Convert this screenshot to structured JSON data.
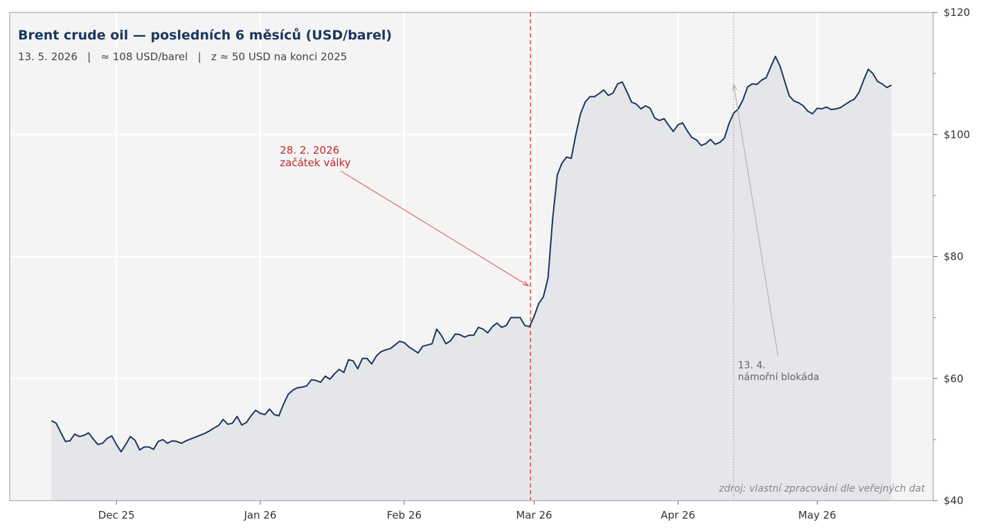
{
  "chart_data": {
    "type": "line",
    "title": "Brent crude oil — posledních 6 měsíců (USD/barel)",
    "subtitle": "13. 5. 2026   |   ≈ 108 USD/barel   |   z ≈ 50 USD na konci 2025",
    "source": "zdroj: vlastní zpracování dle veřejných dat",
    "ylim": [
      40,
      120
    ],
    "y_axis_position": "right",
    "y_ticks": [
      40,
      60,
      80,
      100,
      120
    ],
    "y_tick_labels": [
      "$40",
      "$60",
      "$80",
      "$100",
      "$120"
    ],
    "x_range": [
      "2025-11-08",
      "2026-05-26"
    ],
    "x_ticks": [
      "2025-12-01",
      "2026-01-01",
      "2026-02-01",
      "2026-03-01",
      "2026-04-01",
      "2026-05-01"
    ],
    "x_tick_labels": [
      "Dec 25",
      "Jan 26",
      "Feb 26",
      "Mar 26",
      "Apr 26",
      "May 26"
    ],
    "grid": true,
    "colors": {
      "line": "#1b365d",
      "fill": "#e4e6ea",
      "plot_bg": "#f4f4f4",
      "event": "#d9534f",
      "annotation": "#aaaaaa"
    },
    "series": [
      {
        "points": [
          [
            "2025-11-17",
            53.1
          ],
          [
            "2025-11-18",
            52.7
          ],
          [
            "2025-11-19",
            51.2
          ],
          [
            "2025-11-20",
            49.7
          ],
          [
            "2025-11-21",
            49.8
          ],
          [
            "2025-11-22",
            50.9
          ],
          [
            "2025-11-23",
            50.5
          ],
          [
            "2025-11-24",
            50.7
          ],
          [
            "2025-11-25",
            51.1
          ],
          [
            "2025-11-26",
            50.1
          ],
          [
            "2025-11-27",
            49.2
          ],
          [
            "2025-11-28",
            49.4
          ],
          [
            "2025-11-29",
            50.2
          ],
          [
            "2025-11-30",
            50.6
          ],
          [
            "2025-12-01",
            49.2
          ],
          [
            "2025-12-02",
            48.0
          ],
          [
            "2025-12-03",
            49.2
          ],
          [
            "2025-12-04",
            50.5
          ],
          [
            "2025-12-05",
            49.9
          ],
          [
            "2025-12-06",
            48.3
          ],
          [
            "2025-12-07",
            48.8
          ],
          [
            "2025-12-08",
            48.8
          ],
          [
            "2025-12-09",
            48.4
          ],
          [
            "2025-12-10",
            49.7
          ],
          [
            "2025-12-11",
            50.0
          ],
          [
            "2025-12-12",
            49.4
          ],
          [
            "2025-12-13",
            49.8
          ],
          [
            "2025-12-14",
            49.7
          ],
          [
            "2025-12-15",
            49.4
          ],
          [
            "2025-12-16",
            49.8
          ],
          [
            "2025-12-17",
            50.1
          ],
          [
            "2025-12-18",
            50.4
          ],
          [
            "2025-12-19",
            50.7
          ],
          [
            "2025-12-20",
            51.0
          ],
          [
            "2025-12-21",
            51.4
          ],
          [
            "2025-12-22",
            51.9
          ],
          [
            "2025-12-23",
            52.3
          ],
          [
            "2025-12-24",
            53.3
          ],
          [
            "2025-12-25",
            52.5
          ],
          [
            "2025-12-26",
            52.7
          ],
          [
            "2025-12-27",
            53.8
          ],
          [
            "2025-12-28",
            52.4
          ],
          [
            "2025-12-29",
            52.8
          ],
          [
            "2025-12-30",
            53.9
          ],
          [
            "2025-12-31",
            54.8
          ],
          [
            "2026-01-01",
            54.3
          ],
          [
            "2026-01-02",
            54.1
          ],
          [
            "2026-01-03",
            55.0
          ],
          [
            "2026-01-04",
            54.1
          ],
          [
            "2026-01-05",
            53.9
          ],
          [
            "2026-01-06",
            55.8
          ],
          [
            "2026-01-07",
            57.4
          ],
          [
            "2026-01-08",
            58.1
          ],
          [
            "2026-01-09",
            58.5
          ],
          [
            "2026-01-10",
            58.6
          ],
          [
            "2026-01-11",
            58.8
          ],
          [
            "2026-01-12",
            59.8
          ],
          [
            "2026-01-13",
            59.7
          ],
          [
            "2026-01-14",
            59.4
          ],
          [
            "2026-01-15",
            60.4
          ],
          [
            "2026-01-16",
            59.9
          ],
          [
            "2026-01-17",
            60.8
          ],
          [
            "2026-01-18",
            61.5
          ],
          [
            "2026-01-19",
            61.0
          ],
          [
            "2026-01-20",
            63.1
          ],
          [
            "2026-01-21",
            62.9
          ],
          [
            "2026-01-22",
            61.6
          ],
          [
            "2026-01-23",
            63.3
          ],
          [
            "2026-01-24",
            63.3
          ],
          [
            "2026-01-25",
            62.4
          ],
          [
            "2026-01-26",
            63.7
          ],
          [
            "2026-01-27",
            64.4
          ],
          [
            "2026-01-28",
            64.7
          ],
          [
            "2026-01-29",
            64.9
          ],
          [
            "2026-01-30",
            65.5
          ],
          [
            "2026-01-31",
            66.1
          ],
          [
            "2026-02-01",
            65.9
          ],
          [
            "2026-02-02",
            65.2
          ],
          [
            "2026-02-03",
            64.7
          ],
          [
            "2026-02-04",
            64.2
          ],
          [
            "2026-02-05",
            65.3
          ],
          [
            "2026-02-06",
            65.5
          ],
          [
            "2026-02-07",
            65.7
          ],
          [
            "2026-02-08",
            68.1
          ],
          [
            "2026-02-09",
            67.1
          ],
          [
            "2026-02-10",
            65.7
          ],
          [
            "2026-02-11",
            66.2
          ],
          [
            "2026-02-12",
            67.3
          ],
          [
            "2026-02-13",
            67.2
          ],
          [
            "2026-02-14",
            66.8
          ],
          [
            "2026-02-15",
            67.1
          ],
          [
            "2026-02-16",
            67.1
          ],
          [
            "2026-02-17",
            68.4
          ],
          [
            "2026-02-18",
            68.1
          ],
          [
            "2026-02-19",
            67.5
          ],
          [
            "2026-02-20",
            68.5
          ],
          [
            "2026-02-21",
            69.1
          ],
          [
            "2026-02-22",
            68.4
          ],
          [
            "2026-02-23",
            68.7
          ],
          [
            "2026-02-24",
            70.0
          ],
          [
            "2026-02-25",
            70.0
          ],
          [
            "2026-02-26",
            70.0
          ],
          [
            "2026-02-27",
            68.7
          ],
          [
            "2026-02-28",
            68.5
          ],
          [
            "2026-03-01",
            70.2
          ],
          [
            "2026-03-02",
            72.3
          ],
          [
            "2026-03-03",
            73.4
          ],
          [
            "2026-03-04",
            76.5
          ],
          [
            "2026-03-05",
            86.2
          ],
          [
            "2026-03-06",
            93.4
          ],
          [
            "2026-03-07",
            95.3
          ],
          [
            "2026-03-08",
            96.3
          ],
          [
            "2026-03-09",
            96.1
          ],
          [
            "2026-03-10",
            100.0
          ],
          [
            "2026-03-11",
            103.4
          ],
          [
            "2026-03-12",
            105.3
          ],
          [
            "2026-03-13",
            106.2
          ],
          [
            "2026-03-14",
            106.2
          ],
          [
            "2026-03-15",
            106.7
          ],
          [
            "2026-03-16",
            107.3
          ],
          [
            "2026-03-17",
            106.4
          ],
          [
            "2026-03-18",
            106.8
          ],
          [
            "2026-03-19",
            108.3
          ],
          [
            "2026-03-20",
            108.6
          ],
          [
            "2026-03-21",
            107.0
          ],
          [
            "2026-03-22",
            105.3
          ],
          [
            "2026-03-23",
            105.0
          ],
          [
            "2026-03-24",
            104.2
          ],
          [
            "2026-03-25",
            104.7
          ],
          [
            "2026-03-26",
            104.3
          ],
          [
            "2026-03-27",
            102.7
          ],
          [
            "2026-03-28",
            102.3
          ],
          [
            "2026-03-29",
            102.6
          ],
          [
            "2026-03-30",
            101.5
          ],
          [
            "2026-03-31",
            100.5
          ],
          [
            "2026-04-01",
            101.6
          ],
          [
            "2026-04-02",
            101.9
          ],
          [
            "2026-04-03",
            100.6
          ],
          [
            "2026-04-04",
            99.5
          ],
          [
            "2026-04-05",
            99.1
          ],
          [
            "2026-04-06",
            98.2
          ],
          [
            "2026-04-07",
            98.5
          ],
          [
            "2026-04-08",
            99.2
          ],
          [
            "2026-04-09",
            98.4
          ],
          [
            "2026-04-10",
            98.7
          ],
          [
            "2026-04-11",
            99.4
          ],
          [
            "2026-04-12",
            101.8
          ],
          [
            "2026-04-13",
            103.5
          ],
          [
            "2026-04-14",
            104.2
          ],
          [
            "2026-04-15",
            105.7
          ],
          [
            "2026-04-16",
            107.8
          ],
          [
            "2026-04-17",
            108.3
          ],
          [
            "2026-04-18",
            108.2
          ],
          [
            "2026-04-19",
            108.9
          ],
          [
            "2026-04-20",
            109.3
          ],
          [
            "2026-04-21",
            111.1
          ],
          [
            "2026-04-22",
            112.8
          ],
          [
            "2026-04-23",
            111.2
          ],
          [
            "2026-04-24",
            108.7
          ],
          [
            "2026-04-25",
            106.3
          ],
          [
            "2026-04-26",
            105.5
          ],
          [
            "2026-04-27",
            105.2
          ],
          [
            "2026-04-28",
            104.7
          ],
          [
            "2026-04-29",
            103.8
          ],
          [
            "2026-04-30",
            103.4
          ],
          [
            "2026-05-01",
            104.3
          ],
          [
            "2026-05-02",
            104.2
          ],
          [
            "2026-05-03",
            104.5
          ],
          [
            "2026-05-04",
            104.1
          ],
          [
            "2026-05-05",
            104.2
          ],
          [
            "2026-05-06",
            104.4
          ],
          [
            "2026-05-07",
            104.9
          ],
          [
            "2026-05-08",
            105.4
          ],
          [
            "2026-05-09",
            105.8
          ],
          [
            "2026-05-10",
            106.9
          ],
          [
            "2026-05-11",
            108.9
          ],
          [
            "2026-05-12",
            110.7
          ],
          [
            "2026-05-13",
            110.0
          ],
          [
            "2026-05-14",
            108.7
          ],
          [
            "2026-05-15",
            108.3
          ],
          [
            "2026-05-16",
            107.7
          ],
          [
            "2026-05-17",
            108.1
          ]
        ]
      }
    ],
    "annotations": [
      {
        "date_line": "2026-02-28",
        "line_style": "dashed",
        "line1": "28. 2. 2026",
        "line2": "začátek války",
        "arrow_to": [
          "2026-02-28",
          75.2
        ],
        "color": "#c0282d"
      },
      {
        "date_line": "2026-04-13",
        "line_style": "dotted",
        "line1": "13. 4.",
        "line2": "námořní blokáda",
        "arrow_to": [
          "2026-04-13",
          108.2
        ],
        "color": "#666666"
      }
    ]
  }
}
